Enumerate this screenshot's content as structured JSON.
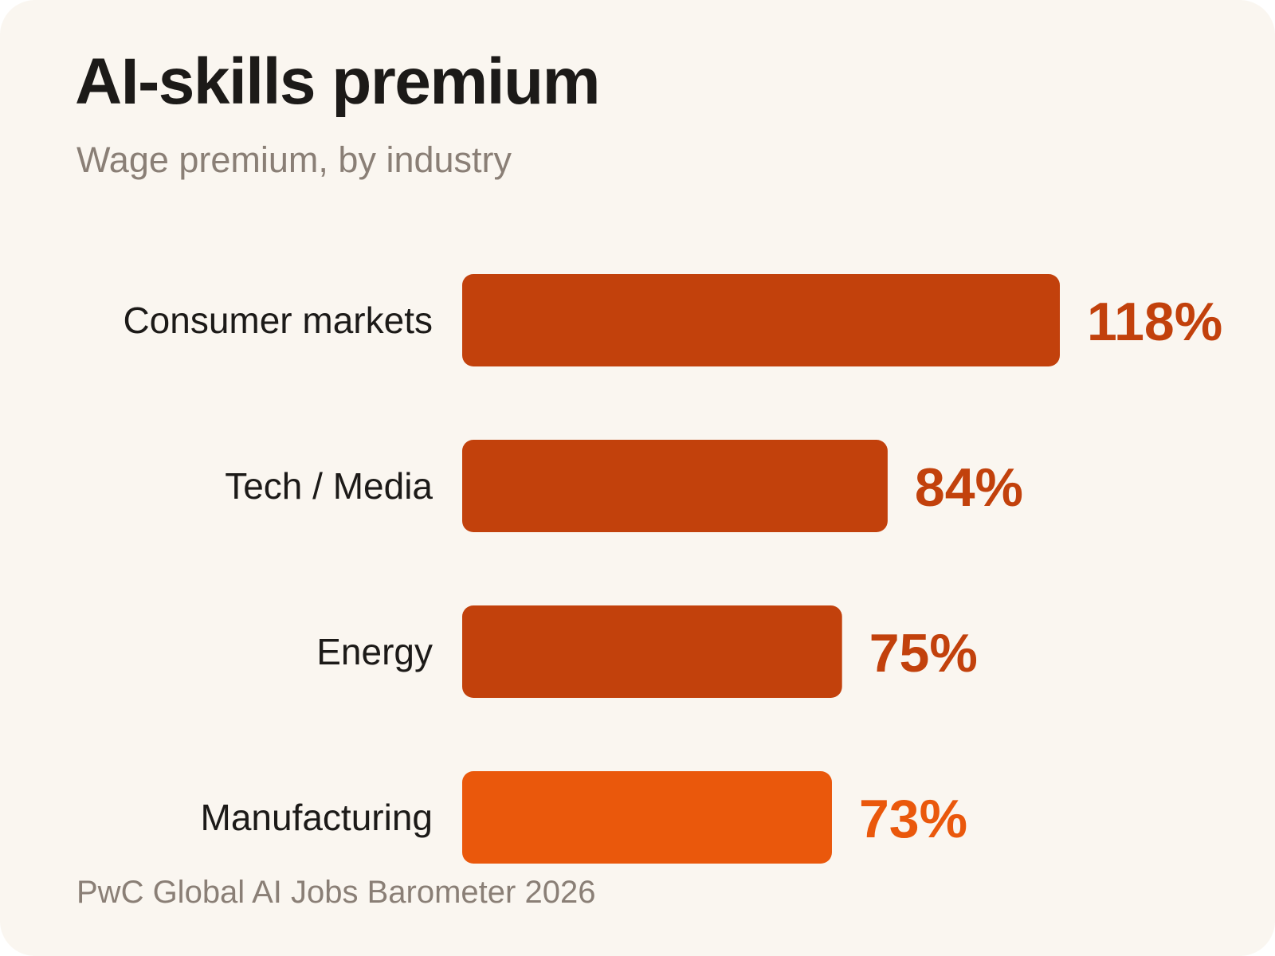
{
  "colors": {
    "background": "#faf6f0",
    "bar_default": "#c2410c",
    "bar_highlight": "#ea580c",
    "title": "#1c1a18",
    "muted": "#8a7f76"
  },
  "chart_data": {
    "type": "bar",
    "orientation": "horizontal",
    "title": "AI-skills premium",
    "subtitle": "Wage premium, by industry",
    "source": "PwC Global AI Jobs Barometer 2026",
    "categories": [
      "Consumer markets",
      "Tech / Media",
      "Energy",
      "Manufacturing"
    ],
    "values": [
      118,
      84,
      75,
      73
    ],
    "value_labels": [
      "118%",
      "84%",
      "75%",
      "73%"
    ],
    "highlight": [
      "Manufacturing"
    ],
    "unit": "%",
    "xlim": [
      0,
      118
    ],
    "grid": false,
    "legend": "none"
  }
}
